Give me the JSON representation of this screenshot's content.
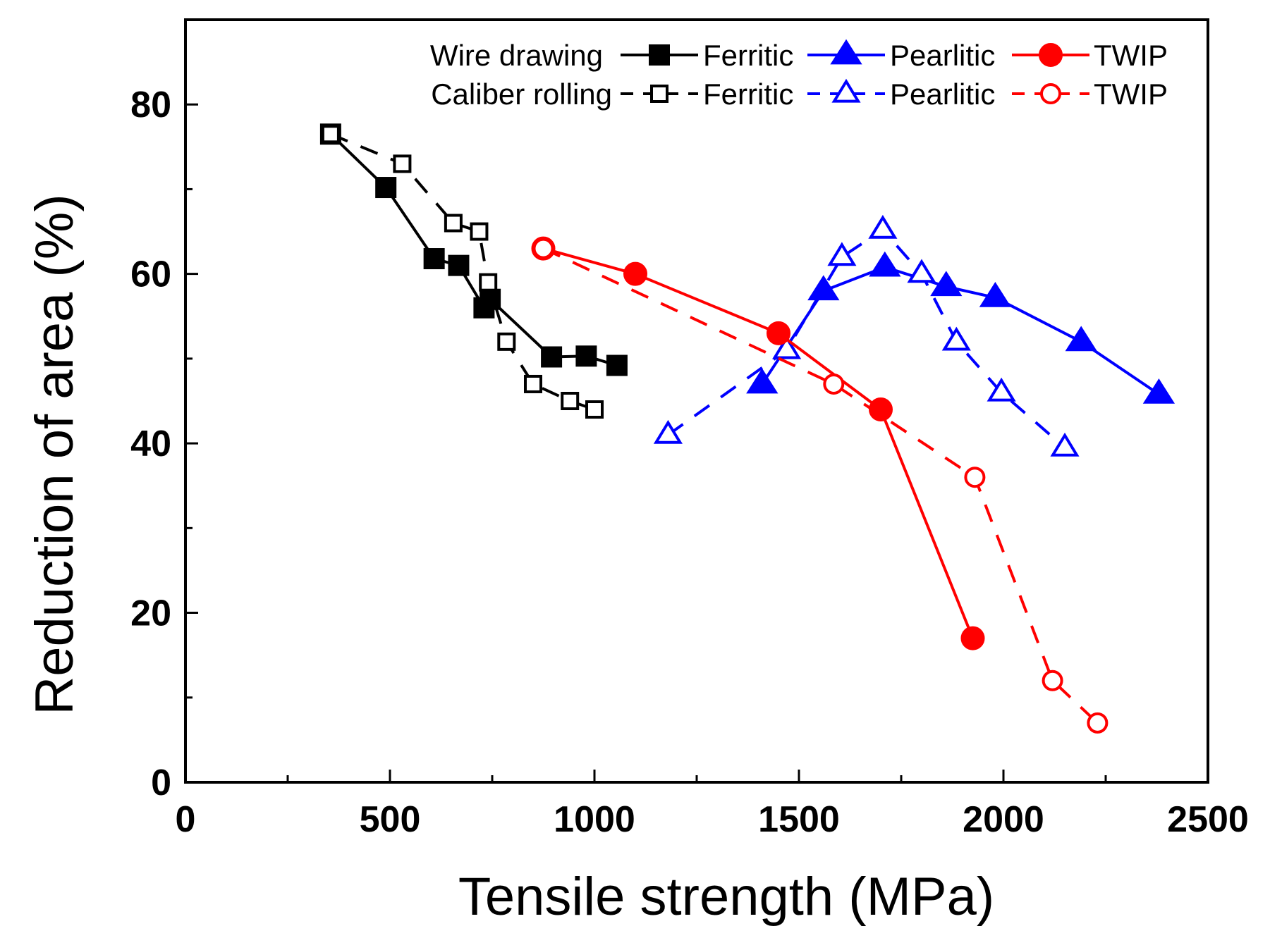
{
  "chart_data": {
    "type": "line",
    "xlabel": "Tensile strength (MPa)",
    "ylabel": "Reduction of area (%)",
    "xlim": [
      0,
      2500
    ],
    "ylim": [
      0,
      90
    ],
    "x_major_ticks": [
      0,
      500,
      1000,
      1500,
      2000,
      2500
    ],
    "x_tick_labels": [
      "0",
      "500",
      "1000",
      "1500",
      "2000",
      "2500"
    ],
    "x_minor_ticks": [
      250,
      750,
      1250,
      1750,
      2250
    ],
    "y_major_ticks": [
      0,
      20,
      40,
      60,
      80
    ],
    "y_tick_labels": [
      "0",
      "20",
      "40",
      "60",
      "80"
    ],
    "y_minor_ticks": [
      10,
      30,
      50,
      70
    ],
    "grid": false,
    "legend": {
      "position": "top-right",
      "group_labels": [
        "Wire drawing",
        "Caliber rolling"
      ]
    },
    "series": [
      {
        "name": "Ferritic",
        "group": "Wire drawing",
        "color": "#000000",
        "marker": "square",
        "filled": true,
        "dashed": false,
        "x": [
          355,
          490,
          608,
          668,
          730,
          745,
          895,
          980,
          1055
        ],
        "y": [
          76.5,
          70.2,
          61.8,
          61,
          56,
          57,
          50.2,
          50.3,
          49.2
        ]
      },
      {
        "name": "Ferritic",
        "group": "Caliber rolling",
        "color": "#000000",
        "marker": "square",
        "filled": false,
        "dashed": true,
        "x": [
          355,
          530,
          655,
          718,
          740,
          785,
          850,
          940,
          1000
        ],
        "y": [
          76.5,
          73,
          66,
          65,
          59,
          52,
          47,
          45,
          44
        ]
      },
      {
        "name": "Pearlitic",
        "group": "Wire drawing",
        "color": "#0000ff",
        "marker": "triangle",
        "filled": true,
        "dashed": false,
        "x": [
          1410,
          1560,
          1710,
          1860,
          1980,
          2190,
          2380
        ],
        "y": [
          47,
          58,
          60.8,
          58.5,
          57.2,
          52,
          45.8
        ]
      },
      {
        "name": "Pearlitic",
        "group": "Caliber rolling",
        "color": "#0000ff",
        "marker": "triangle",
        "filled": false,
        "dashed": true,
        "x": [
          1180,
          1470,
          1605,
          1705,
          1800,
          1885,
          1995,
          2150
        ],
        "y": [
          41,
          51,
          62,
          65.2,
          60,
          52,
          46,
          39.5
        ]
      },
      {
        "name": "TWIP",
        "group": "Wire drawing",
        "color": "#ff0000",
        "marker": "circle",
        "filled": true,
        "dashed": false,
        "x": [
          875,
          1100,
          1450,
          1700,
          1925
        ],
        "y": [
          63,
          60,
          53,
          44,
          17
        ]
      },
      {
        "name": "TWIP",
        "group": "Caliber rolling",
        "color": "#ff0000",
        "marker": "circle",
        "filled": false,
        "dashed": true,
        "x": [
          875,
          1585,
          1930,
          2120,
          2230
        ],
        "y": [
          63,
          47,
          36,
          12,
          7
        ]
      }
    ]
  }
}
